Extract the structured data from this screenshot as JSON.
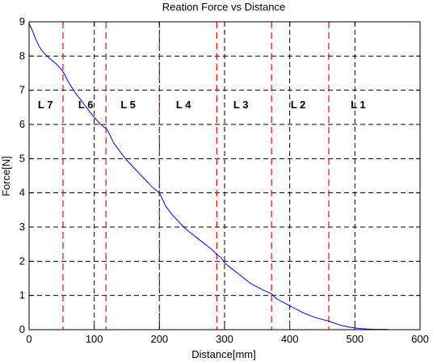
{
  "chart_data": {
    "type": "line",
    "title": "Reation Force vs Distance",
    "xlabel": "Distance[mm]",
    "ylabel": "Force[N]",
    "xlim": [
      0,
      600
    ],
    "ylim": [
      0,
      9
    ],
    "x_ticks": [
      0,
      100,
      200,
      300,
      400,
      500,
      600
    ],
    "y_ticks": [
      0,
      1,
      2,
      3,
      4,
      5,
      6,
      7,
      8,
      9
    ],
    "grid": true,
    "grid_style": "dashed",
    "series": [
      {
        "color": "#0000ff",
        "x": [
          0,
          5,
          10,
          15,
          20,
          25,
          30,
          40,
          50,
          55,
          60,
          70,
          80,
          90,
          100,
          110,
          120,
          125,
          130,
          140,
          150,
          160,
          170,
          180,
          190,
          200,
          205,
          210,
          220,
          230,
          240,
          250,
          260,
          270,
          280,
          288,
          295,
          300,
          310,
          320,
          330,
          340,
          350,
          360,
          372,
          380,
          390,
          400,
          410,
          420,
          430,
          440,
          450,
          460,
          470,
          480,
          490,
          500,
          510,
          520,
          530,
          540,
          550
        ],
        "y": [
          8.95,
          8.75,
          8.5,
          8.3,
          8.15,
          8.05,
          7.95,
          7.8,
          7.6,
          7.45,
          7.25,
          6.95,
          6.7,
          6.45,
          6.2,
          6.0,
          5.85,
          5.65,
          5.45,
          5.2,
          4.95,
          4.75,
          4.55,
          4.35,
          4.15,
          4.0,
          3.8,
          3.6,
          3.35,
          3.15,
          2.95,
          2.8,
          2.65,
          2.5,
          2.35,
          2.2,
          2.1,
          1.95,
          1.8,
          1.65,
          1.5,
          1.35,
          1.25,
          1.15,
          1.05,
          0.9,
          0.8,
          0.7,
          0.6,
          0.5,
          0.42,
          0.35,
          0.3,
          0.25,
          0.18,
          0.12,
          0.08,
          0.05,
          0.03,
          0.02,
          0.01,
          0.01,
          0.01
        ]
      }
    ],
    "boundaries": {
      "color": "#ff0000",
      "x": [
        52,
        118,
        200,
        288,
        372,
        460
      ]
    },
    "region_labels": [
      {
        "text": "L 7",
        "x": 25,
        "y": 6.55
      },
      {
        "text": "L 6",
        "x": 87,
        "y": 6.55
      },
      {
        "text": "L 5",
        "x": 152,
        "y": 6.55
      },
      {
        "text": "L 4",
        "x": 237,
        "y": 6.55
      },
      {
        "text": "L 3",
        "x": 325,
        "y": 6.55
      },
      {
        "text": "L 2",
        "x": 413,
        "y": 6.55
      },
      {
        "text": "L 1",
        "x": 505,
        "y": 6.55
      }
    ]
  }
}
